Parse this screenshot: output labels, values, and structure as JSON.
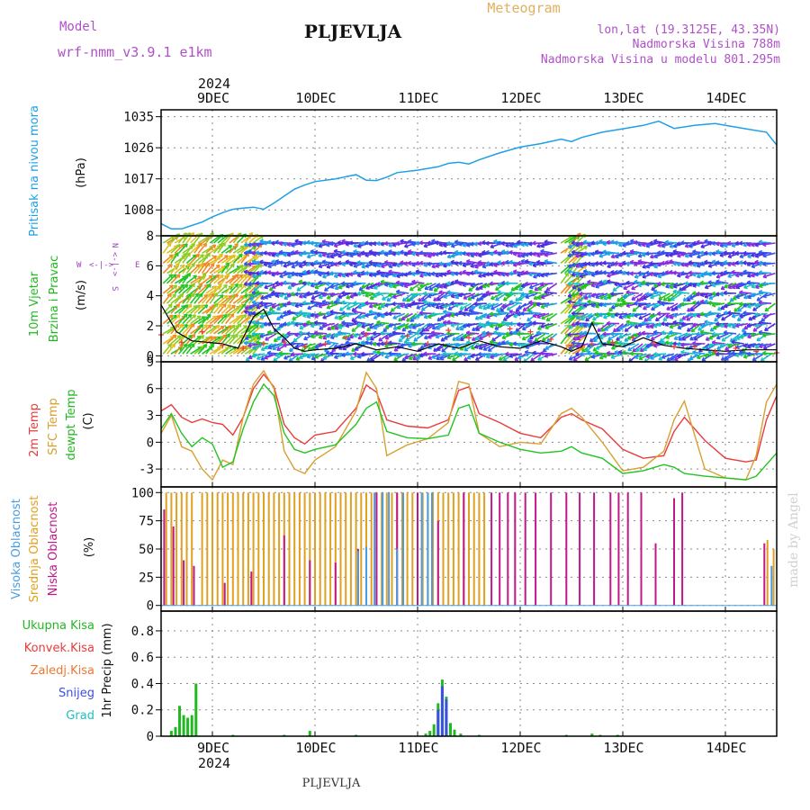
{
  "header": {
    "model_label": "Model",
    "model_name": "wrf-nmm_v3.9.1 e1km",
    "station": "PLJEVLJA",
    "product": "Meteogram",
    "lonlat": "lon,lat (19.3125E, 43.35N)",
    "altitude": "Nadmorska Visina 788m",
    "model_altitude": "Nadmorska Visina u modelu 801.295m",
    "bottom_station": "PLJEVLJA",
    "watermark": "made by Angel",
    "year": "2024"
  },
  "colors": {
    "pressure": "#1ea0e6",
    "temp2m": "#e83c3c",
    "sfc": "#d8a030",
    "dewpt": "#22c422",
    "high_cloud": "#4a9ce0",
    "mid_cloud": "#e0a020",
    "low_cloud": "#c01888",
    "precip_total": "#22b822",
    "precip_snow": "#3a50e0",
    "wind_label": "#22b822",
    "cardinal": "#a040c0",
    "title_orange": "#e0b060",
    "purple": "#b050c8"
  },
  "x_axis": {
    "days": [
      "9DEC",
      "10DEC",
      "11DEC",
      "12DEC",
      "13DEC",
      "14DEC"
    ],
    "start_day": 8.5,
    "end_day": 14.5
  },
  "chart_data": [
    {
      "type": "line",
      "name": "pressure",
      "ylabel": [
        "Pritisak na nivou mora",
        "(hPa)"
      ],
      "yticks": [
        1008,
        1017,
        1026,
        1035
      ],
      "ylim": [
        1000.5,
        1037
      ],
      "x": [
        8.5,
        8.6,
        8.7,
        8.8,
        8.9,
        9.0,
        9.1,
        9.2,
        9.3,
        9.4,
        9.5,
        9.6,
        9.7,
        9.8,
        9.9,
        10.0,
        10.2,
        10.4,
        10.5,
        10.6,
        10.7,
        10.8,
        11.0,
        11.2,
        11.3,
        11.4,
        11.5,
        11.6,
        11.8,
        12.0,
        12.2,
        12.4,
        12.5,
        12.6,
        12.8,
        13.0,
        13.2,
        13.35,
        13.5,
        13.7,
        13.9,
        14.0,
        14.2,
        14.4,
        14.5
      ],
      "y": [
        1004,
        1002.5,
        1002.5,
        1003.5,
        1004.5,
        1006,
        1007.2,
        1008.2,
        1008.5,
        1008.8,
        1008.2,
        1010,
        1012,
        1014,
        1015.2,
        1016.2,
        1017,
        1018.2,
        1016.6,
        1016.5,
        1017.5,
        1018.8,
        1019.5,
        1020.5,
        1021.5,
        1021.8,
        1021.3,
        1022.5,
        1024.5,
        1026.2,
        1027.2,
        1028.5,
        1027.8,
        1029,
        1030.5,
        1031.5,
        1032.5,
        1033.7,
        1031.6,
        1032.5,
        1033,
        1032.5,
        1031.5,
        1030.5,
        1026.8
      ]
    },
    {
      "type": "wind",
      "name": "10m wind",
      "ylabel": [
        "10m Vjetar",
        "Brzina i Pravac",
        "(m/s)"
      ],
      "yticks": [
        0,
        2,
        4,
        6,
        8
      ],
      "ylim": [
        -0.4,
        8
      ],
      "compass": {
        "n": "N",
        "s": "S",
        "e": "E",
        "w": "W"
      },
      "speed_x": [
        8.5,
        8.65,
        8.8,
        8.95,
        9.1,
        9.25,
        9.4,
        9.5,
        9.6,
        9.7,
        9.8,
        9.9,
        10.0,
        10.2,
        10.4,
        10.6,
        10.8,
        11.0,
        11.2,
        11.4,
        11.6,
        11.8,
        12.0,
        12.2,
        12.4,
        12.5,
        12.6,
        12.7,
        12.8,
        13.0,
        13.2,
        13.4,
        13.6,
        13.8,
        14.0,
        14.2,
        14.5
      ],
      "speed_y": [
        3.4,
        1.6,
        1.0,
        0.9,
        0.8,
        0.5,
        2.6,
        3.1,
        1.8,
        1.2,
        0.5,
        0.3,
        0.4,
        0.5,
        0.8,
        0.4,
        0.6,
        0.3,
        0.8,
        0.5,
        1.0,
        0.6,
        0.5,
        1.0,
        0.6,
        0.3,
        0.6,
        2.2,
        0.8,
        0.6,
        1.2,
        0.7,
        0.5,
        0.4,
        0.3,
        0.4,
        0.4
      ],
      "gust_x": [
        8.5,
        8.7,
        8.9,
        9.1,
        9.3,
        9.5,
        9.7,
        9.9,
        10.1,
        10.3,
        10.5,
        10.7,
        10.9,
        11.1,
        11.3,
        11.5,
        11.7,
        11.9,
        12.1,
        12.3,
        12.5,
        12.7,
        12.9,
        13.1,
        13.3,
        13.5,
        13.7,
        13.9,
        14.1,
        14.3,
        14.5
      ],
      "gust_y": [
        1.4,
        0.9,
        1.6,
        0.7,
        0.5,
        0.8,
        0.9,
        0.6,
        0.8,
        1.2,
        1.4,
        0.9,
        1.3,
        0.8,
        1.7,
        1.2,
        1.4,
        1.8,
        1.6,
        1.1,
        0.7,
        0.8,
        0.9,
        1.2,
        0.8,
        0.6,
        0.6,
        0.3,
        0.5,
        0.3,
        0.2
      ]
    },
    {
      "type": "line",
      "name": "temperature",
      "ylabel": [
        "2m Temp",
        "SFC Temp",
        "dewpt Temp",
        "(C)"
      ],
      "yticks": [
        -3,
        0,
        3,
        6,
        9
      ],
      "ylim": [
        -5,
        9
      ],
      "series": [
        {
          "name": "2m Temp",
          "color_key": "temp2m",
          "x": [
            8.5,
            8.6,
            8.7,
            8.8,
            8.9,
            9.0,
            9.1,
            9.2,
            9.3,
            9.4,
            9.5,
            9.6,
            9.7,
            9.8,
            9.9,
            10.0,
            10.2,
            10.4,
            10.5,
            10.6,
            10.7,
            10.9,
            11.1,
            11.3,
            11.4,
            11.5,
            11.6,
            11.8,
            12.0,
            12.2,
            12.4,
            12.5,
            12.6,
            12.8,
            13.0,
            13.2,
            13.4,
            13.5,
            13.6,
            13.8,
            14.0,
            14.2,
            14.3,
            14.4,
            14.5
          ],
          "y": [
            3.5,
            4.2,
            2.8,
            2.2,
            2.6,
            2.2,
            2.0,
            0.8,
            2.8,
            6.0,
            7.6,
            6.2,
            2.0,
            0.5,
            -0.2,
            0.8,
            1.2,
            3.8,
            6.4,
            5.6,
            2.5,
            1.8,
            1.6,
            2.5,
            5.8,
            6.2,
            3.2,
            2.2,
            1.0,
            0.5,
            2.8,
            3.2,
            2.5,
            1.5,
            -0.8,
            -1.8,
            -1.5,
            1.2,
            2.8,
            0.2,
            -1.8,
            -2.2,
            -2.0,
            2.5,
            5.2
          ]
        },
        {
          "name": "SFC Temp",
          "color_key": "sfc",
          "x": [
            8.5,
            8.6,
            8.7,
            8.8,
            8.9,
            9.0,
            9.1,
            9.2,
            9.3,
            9.4,
            9.5,
            9.6,
            9.7,
            9.8,
            9.9,
            10.0,
            10.2,
            10.4,
            10.5,
            10.6,
            10.7,
            10.9,
            11.1,
            11.3,
            11.4,
            11.5,
            11.6,
            11.8,
            12.0,
            12.2,
            12.4,
            12.5,
            12.6,
            12.8,
            13.0,
            13.2,
            13.4,
            13.5,
            13.6,
            13.8,
            14.0,
            14.2,
            14.3,
            14.4,
            14.5
          ],
          "y": [
            1.0,
            3.0,
            -0.5,
            -1.0,
            -3.0,
            -4.2,
            -2.0,
            -2.5,
            2.8,
            6.5,
            8.0,
            6.0,
            -1.0,
            -3.0,
            -3.5,
            -2.0,
            -0.5,
            3.5,
            7.8,
            6.0,
            -1.5,
            -0.3,
            0.4,
            2.2,
            6.8,
            6.5,
            1.0,
            -0.5,
            0.0,
            -0.2,
            3.2,
            3.8,
            2.8,
            0.0,
            -3.2,
            -2.8,
            -1.0,
            2.5,
            4.6,
            -3.0,
            -4.0,
            -4.2,
            -1.5,
            4.5,
            6.5
          ]
        },
        {
          "name": "dewpt Temp",
          "color_key": "dewpt",
          "x": [
            8.5,
            8.6,
            8.7,
            8.8,
            8.9,
            9.0,
            9.1,
            9.2,
            9.3,
            9.4,
            9.5,
            9.6,
            9.7,
            9.8,
            9.9,
            10.0,
            10.2,
            10.4,
            10.5,
            10.6,
            10.7,
            10.9,
            11.1,
            11.3,
            11.4,
            11.5,
            11.6,
            11.8,
            12.0,
            12.2,
            12.4,
            12.5,
            12.6,
            12.8,
            13.0,
            13.2,
            13.4,
            13.5,
            13.6,
            13.8,
            14.0,
            14.2,
            14.3,
            14.4,
            14.5
          ],
          "y": [
            1.5,
            3.2,
            1.0,
            -0.5,
            0.5,
            -0.2,
            -2.8,
            -2.2,
            1.5,
            4.5,
            6.5,
            5.2,
            1.0,
            -0.8,
            -1.2,
            -0.8,
            -0.3,
            2.0,
            3.8,
            4.5,
            1.2,
            0.5,
            0.4,
            0.8,
            3.8,
            4.2,
            1.0,
            0.0,
            -0.8,
            -1.2,
            -1.0,
            -0.5,
            -1.2,
            -1.8,
            -3.5,
            -3.2,
            -2.5,
            -2.8,
            -3.5,
            -3.8,
            -4.0,
            -4.2,
            -3.8,
            -2.5,
            -1.2
          ]
        }
      ]
    },
    {
      "type": "bar",
      "name": "cloud cover",
      "ylabel": [
        "Visoka Oblacnost",
        "Srednja Oblacnost",
        "Niska Oblacnost",
        "(%)"
      ],
      "yticks": [
        0,
        25,
        50,
        75,
        100
      ],
      "ylim": [
        -5,
        105
      ],
      "mid_bars_x": [
        8.55,
        8.6,
        8.65,
        8.7,
        8.75,
        8.8,
        8.9,
        8.95,
        9.0,
        9.05,
        9.1,
        9.15,
        9.2,
        9.25,
        9.3,
        9.35,
        9.4,
        9.45,
        9.5,
        9.55,
        9.6,
        9.65,
        9.7,
        9.75,
        9.8,
        9.85,
        9.9,
        9.95,
        10.0,
        10.05,
        10.1,
        10.15,
        10.2,
        10.25,
        10.3,
        10.35,
        10.4,
        10.45,
        10.5,
        10.55,
        10.6,
        10.65,
        10.7,
        10.75,
        10.8,
        10.85,
        10.9,
        10.95,
        11.0,
        11.05,
        11.1,
        11.15,
        11.2,
        11.25,
        11.3,
        11.35,
        11.4,
        11.45,
        11.5,
        11.55,
        11.6,
        11.65
      ],
      "mid_bars_y": [
        100,
        100,
        100,
        100,
        100,
        100,
        100,
        100,
        100,
        100,
        100,
        100,
        100,
        100,
        100,
        100,
        100,
        100,
        100,
        100,
        100,
        100,
        100,
        100,
        100,
        100,
        100,
        100,
        100,
        100,
        100,
        100,
        100,
        100,
        100,
        100,
        100,
        100,
        100,
        100,
        100,
        100,
        100,
        100,
        100,
        100,
        100,
        100,
        100,
        100,
        100,
        100,
        100,
        100,
        100,
        100,
        100,
        100,
        100,
        100,
        100,
        100
      ],
      "low_bars_x": [
        8.53,
        8.62,
        8.72,
        8.82,
        9.12,
        9.38,
        9.7,
        9.95,
        10.2,
        10.42,
        10.6,
        10.8,
        11.0,
        11.2,
        11.45,
        11.72,
        11.8,
        11.88,
        11.95,
        12.05,
        12.15,
        12.3,
        12.45,
        12.58,
        12.72,
        12.88,
        12.96,
        13.05,
        13.18,
        13.32,
        13.5,
        13.58,
        14.38
      ],
      "low_bars_y": [
        85,
        70,
        40,
        35,
        20,
        30,
        62,
        40,
        38,
        50,
        100,
        100,
        100,
        75,
        100,
        100,
        100,
        100,
        100,
        100,
        100,
        100,
        100,
        100,
        100,
        100,
        100,
        100,
        100,
        55,
        95,
        100,
        55
      ],
      "high_bars_x": [
        10.42,
        10.5,
        10.58,
        10.66,
        10.72,
        10.8,
        10.86,
        11.04,
        11.1,
        11.14,
        14.45
      ],
      "high_bars_y": [
        48,
        52,
        100,
        100,
        100,
        50,
        100,
        100,
        100,
        100,
        35
      ],
      "late_mid_x": [
        14.41,
        14.47
      ],
      "late_mid_y": [
        58,
        50
      ]
    },
    {
      "type": "bar",
      "name": "precipitation",
      "ylabel": [
        "1hr Precip (mm)"
      ],
      "legend": [
        "Ukupna Kisa",
        "Konvek.Kisa",
        "Zaledj.Kisa",
        "Snijeg",
        "Grad"
      ],
      "yticks": [
        0,
        0.2,
        0.4,
        0.6,
        0.8
      ],
      "ylim": [
        0,
        0.95
      ],
      "total_x": [
        8.6,
        8.64,
        8.68,
        8.72,
        8.76,
        8.8,
        8.84,
        9.2,
        9.7,
        9.95,
        10.4,
        11.08,
        11.12,
        11.16,
        11.2,
        11.24,
        11.28,
        11.32,
        11.36,
        11.42,
        11.6,
        12.45,
        12.7,
        12.78,
        12.95
      ],
      "total_y": [
        0.04,
        0.07,
        0.23,
        0.16,
        0.14,
        0.16,
        0.4,
        0.01,
        0.01,
        0.04,
        0.01,
        0.02,
        0.04,
        0.09,
        0.25,
        0.43,
        0.3,
        0.1,
        0.05,
        0.02,
        0.01,
        0.01,
        0.02,
        0.01,
        0.01
      ],
      "snow_x": [
        11.2,
        11.24,
        11.28
      ],
      "snow_y": [
        0.2,
        0.38,
        0.28
      ]
    }
  ]
}
